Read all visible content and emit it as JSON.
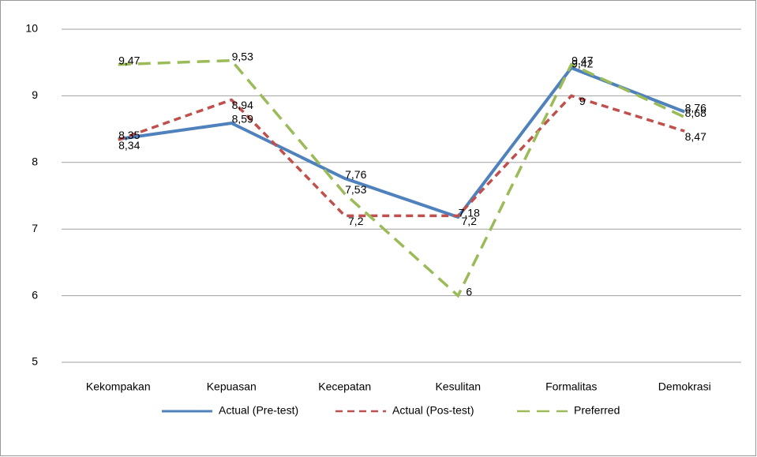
{
  "chart_data": {
    "type": "line",
    "categories": [
      "Kekompakan",
      "Kepuasan",
      "Kecepatan",
      "Kesulitan",
      "Formalitas",
      "Demokrasi"
    ],
    "series": [
      {
        "name": "Actual (Pre-test)",
        "color": "#4f81bd",
        "dash": "solid",
        "values": [
          8.35,
          8.59,
          7.76,
          7.18,
          9.42,
          8.76
        ],
        "value_labels": [
          "8,35",
          "8,59",
          "7,76",
          "7,18",
          "9,42",
          "8,76"
        ]
      },
      {
        "name": "Actual (Pos-test)",
        "color": "#c0504d",
        "dash": "short",
        "values": [
          8.34,
          8.94,
          7.2,
          7.2,
          9,
          8.47
        ],
        "value_labels": [
          "8,34",
          "8,94",
          "7,2",
          "7,2",
          "9",
          "8,47"
        ]
      },
      {
        "name": "Preferred",
        "color": "#9bbb59",
        "dash": "long",
        "values": [
          9.47,
          9.53,
          7.53,
          6,
          9.47,
          8.68
        ],
        "value_labels": [
          "9,47",
          "9,53",
          "7,53",
          "6",
          "9,47",
          "8,68"
        ]
      }
    ],
    "ylim": [
      5,
      10
    ],
    "yticks": [
      5,
      6,
      7,
      8,
      9,
      10
    ],
    "grid": true,
    "legend": "bottom"
  }
}
